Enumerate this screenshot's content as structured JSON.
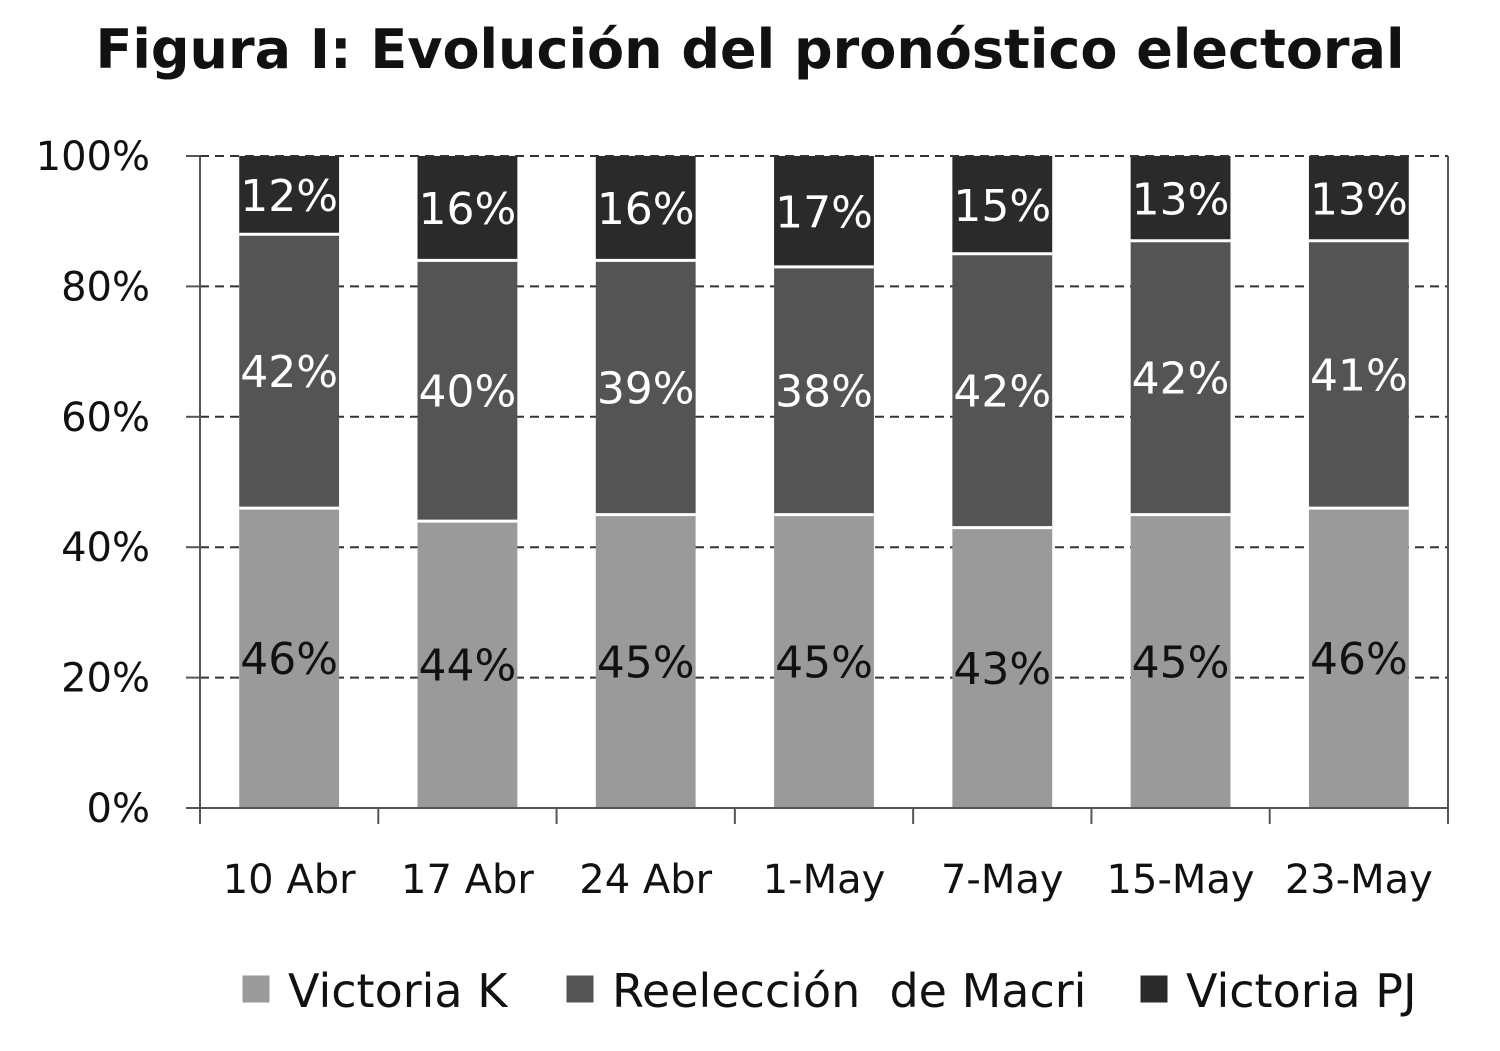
{
  "chart_data": {
    "type": "bar",
    "stacked": true,
    "title": "Figura I: Evolución del pronóstico electoral",
    "categories": [
      "10 Abr",
      "17 Abr",
      "24 Abr",
      "1-May",
      "7-May",
      "15-May",
      "23-May"
    ],
    "series": [
      {
        "name": "Victoria K",
        "values": [
          46,
          44,
          45,
          45,
          43,
          45,
          46
        ],
        "color": "#9a9a9a",
        "label_color": "#111111"
      },
      {
        "name": "Reelección  de Macri",
        "values": [
          42,
          40,
          39,
          38,
          42,
          42,
          41
        ],
        "color": "#545454",
        "label_color": "#ffffff"
      },
      {
        "name": "Victoria PJ",
        "values": [
          12,
          16,
          16,
          17,
          15,
          13,
          13
        ],
        "color": "#2a2a2a",
        "label_color": "#ffffff"
      }
    ],
    "value_suffix": "%",
    "ylim": [
      0,
      100
    ],
    "y_ticks": [
      "0%",
      "20%",
      "40%",
      "60%",
      "80%",
      "100%"
    ],
    "grid": true,
    "grid_style": "dashed",
    "legend_position": "bottom"
  }
}
